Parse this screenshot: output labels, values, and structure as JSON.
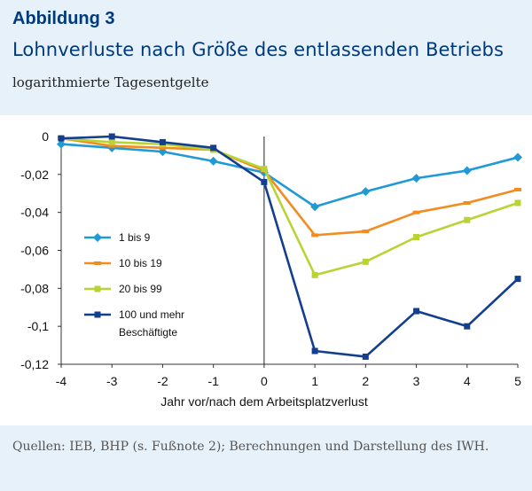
{
  "figure": {
    "label": "Abbildung 3",
    "title": "Lohnverluste nach Größe des entlassenden Betriebs",
    "subtitle": "logarithmierte Tagesentgelte",
    "source": "Quellen: IEB, BHP (s. Fußnote 2); Berechnungen und Darstellung des IWH."
  },
  "chart_data": {
    "type": "line",
    "title": "Lohnverluste nach Größe des entlassenden Betriebs",
    "subtitle": "logarithmierte Tagesentgelte",
    "xlabel": "Jahr vor/nach dem Arbeitsplatzverlust",
    "ylabel": "",
    "x": [
      -4,
      -3,
      -2,
      -1,
      0,
      1,
      2,
      3,
      4,
      5
    ],
    "xlim": [
      -4,
      5
    ],
    "ylim": [
      -0.12,
      0
    ],
    "x_ticks": [
      "-4",
      "-3",
      "-2",
      "-1",
      "0",
      "1",
      "2",
      "3",
      "4",
      "5"
    ],
    "y_ticks": [
      {
        "value": 0,
        "label": "0"
      },
      {
        "value": -0.02,
        "label": "-0,02"
      },
      {
        "value": -0.04,
        "label": "-0,04"
      },
      {
        "value": -0.06,
        "label": "-0,06"
      },
      {
        "value": -0.08,
        "label": "-0,08"
      },
      {
        "value": -0.1,
        "label": "-0,1"
      },
      {
        "value": -0.12,
        "label": "-0,12"
      }
    ],
    "grid": false,
    "legend_position": "left-center",
    "series": [
      {
        "name": "1 bis 9",
        "color": "#1f9ad6",
        "marker": "diamond",
        "values": [
          -0.004,
          -0.006,
          -0.008,
          -0.013,
          -0.019,
          -0.037,
          -0.029,
          -0.022,
          -0.018,
          -0.011
        ]
      },
      {
        "name": "10 bis 19",
        "color": "#f28c1e",
        "marker": "dash",
        "values": [
          -0.001,
          -0.005,
          -0.006,
          -0.007,
          -0.018,
          -0.052,
          -0.05,
          -0.04,
          -0.035,
          -0.028
        ]
      },
      {
        "name": "20 bis 99",
        "color": "#b8d434",
        "marker": "square",
        "values": [
          -0.001,
          -0.003,
          -0.004,
          -0.007,
          -0.017,
          -0.073,
          -0.066,
          -0.053,
          -0.044,
          -0.035
        ]
      },
      {
        "name": "100 und mehr Beschäftigte",
        "color": "#143f8f",
        "marker": "square",
        "values": [
          -0.001,
          0,
          -0.003,
          -0.006,
          -0.024,
          -0.113,
          -0.116,
          -0.092,
          -0.1,
          -0.075
        ]
      }
    ]
  }
}
